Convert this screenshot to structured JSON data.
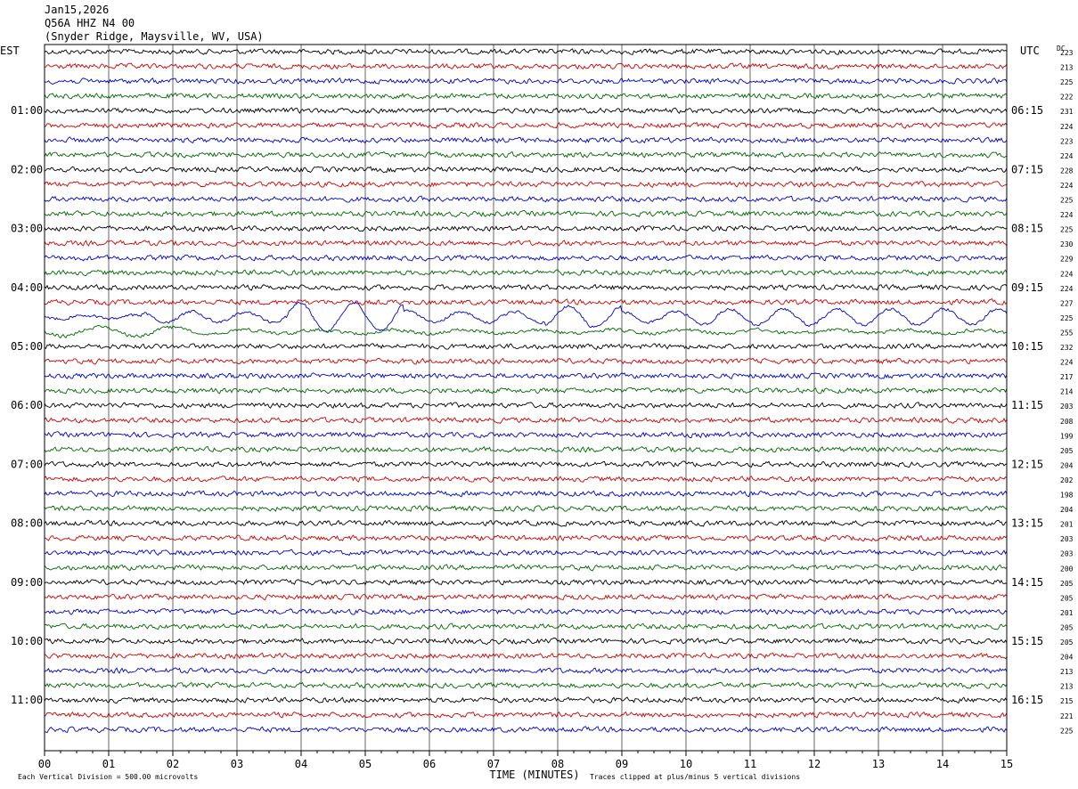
{
  "header": {
    "date": "Jan15,2026",
    "station": "Q56A HHZ N4 00",
    "location": "(Snyder Ridge, Maysville, WV, USA)"
  },
  "chart_data": {
    "type": "line",
    "title": "",
    "xlabel": "TIME (MINUTES)",
    "left_axis_label": "EST",
    "right_axis_label": "UTC",
    "dc_label": "DC",
    "x_ticks": [
      "00",
      "01",
      "02",
      "03",
      "04",
      "05",
      "06",
      "07",
      "08",
      "09",
      "10",
      "11",
      "12",
      "13",
      "14",
      "15"
    ],
    "xlim": [
      0,
      15
    ],
    "grid": true,
    "left_hour_labels": [
      "01:00",
      "02:00",
      "03:00",
      "04:00",
      "05:00",
      "06:00",
      "07:00",
      "08:00",
      "09:00",
      "10:00",
      "11:00"
    ],
    "right_hour_labels": [
      "06:15",
      "07:15",
      "08:15",
      "09:15",
      "10:15",
      "11:15",
      "12:15",
      "13:15",
      "14:15",
      "15:15",
      "16:15"
    ],
    "trace_colors": [
      "#000000",
      "#cc0000",
      "#0000cc",
      "#006600"
    ],
    "dc_offsets": [
      223,
      213,
      225,
      222,
      231,
      224,
      223,
      224,
      228,
      224,
      225,
      224,
      225,
      230,
      229,
      224,
      224,
      227,
      225,
      255,
      232,
      224,
      217,
      214,
      203,
      208,
      199,
      205,
      204,
      202,
      198,
      204,
      201,
      203,
      203,
      200,
      205,
      205,
      201,
      205,
      205,
      204,
      213,
      213,
      215,
      221,
      225
    ],
    "event_rows": [
      18,
      19
    ],
    "footer_left": "Each Vertical Division =  500.00 microvolts",
    "footer_right": "Traces clipped at plus/minus 5 vertical divisions"
  }
}
